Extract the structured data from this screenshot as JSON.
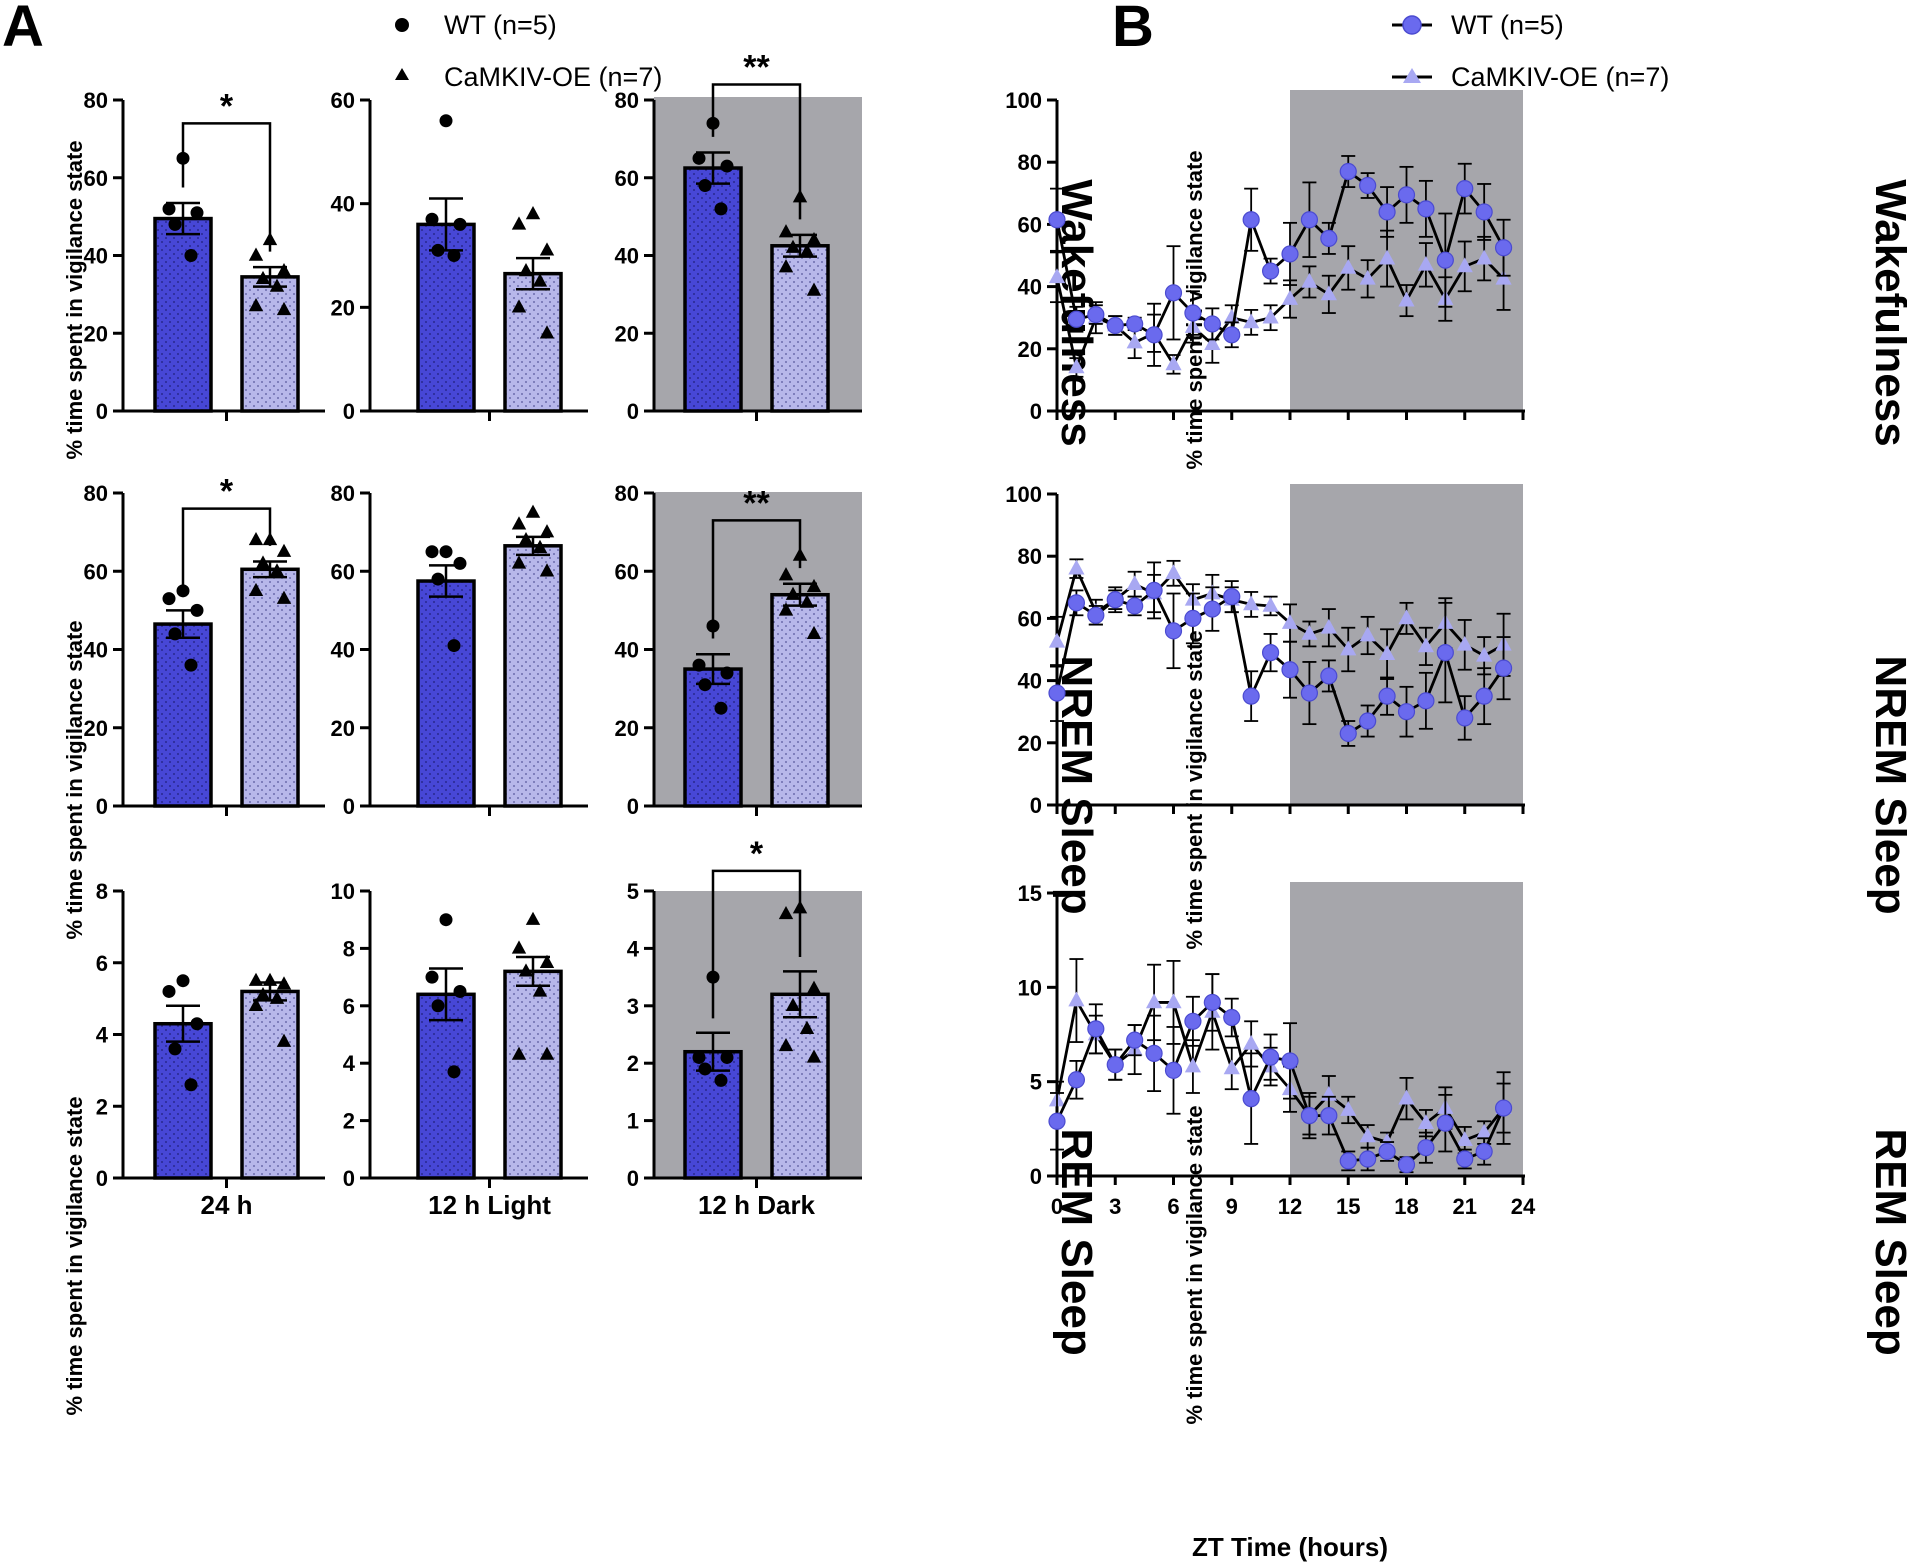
{
  "panel_labels": {
    "a": "A",
    "b": "B"
  },
  "legend_a": [
    {
      "symbol": "circle",
      "label": "WT (n=5)"
    },
    {
      "symbol": "triangle",
      "label": "CaMKIV-OE (n=7)"
    }
  ],
  "legend_b": [
    {
      "symbol": "circle",
      "label": "WT (n=5)"
    },
    {
      "symbol": "triangle",
      "label": "CaMKIV-OE (n=7)"
    }
  ],
  "y_axis_label": "% time spent in vigilance state",
  "row_labels": [
    "Wakefulness",
    "NREM Sleep",
    "REM Sleep"
  ],
  "colors": {
    "wt_bar": "#4747d6",
    "oe_bar": "#b7b7ea",
    "wt_line": "#6a6aee",
    "oe_line": "#a8a8f2",
    "dark_phase": "#a6a6ab"
  },
  "chart_data": [
    {
      "id": "A-wake-24h",
      "type": "bar",
      "row": "Wakefulness",
      "xlabel": "",
      "ylim": [
        0,
        80
      ],
      "ticks": [
        0,
        20,
        40,
        60,
        80
      ],
      "shaded": false,
      "categories": [
        "WT (n=5)",
        "CaMKIV-OE (n=7)"
      ],
      "values": [
        49.5,
        34.5
      ],
      "sem": [
        4.0,
        2.5
      ],
      "points": [
        [
          65,
          52,
          51,
          48,
          40
        ],
        [
          44,
          40,
          36,
          34,
          32,
          27,
          26
        ]
      ],
      "significance": {
        "label": "*",
        "y": 74
      }
    },
    {
      "id": "A-wake-light",
      "type": "bar",
      "row": "Wakefulness",
      "xlabel": "",
      "ylim": [
        0,
        60
      ],
      "ticks": [
        0,
        20,
        40,
        60
      ],
      "shaded": false,
      "categories": [
        "WT (n=5)",
        "CaMKIV-OE (n=7)"
      ],
      "values": [
        36,
        26.5
      ],
      "sem": [
        5.0,
        3.0
      ],
      "points": [
        [
          56,
          37,
          36,
          31,
          30
        ],
        [
          38,
          36,
          31,
          27,
          25,
          20,
          15
        ]
      ],
      "significance": null
    },
    {
      "id": "A-wake-dark",
      "type": "bar",
      "row": "Wakefulness",
      "xlabel": "",
      "ylim": [
        0,
        80
      ],
      "ticks": [
        0,
        20,
        40,
        60,
        80
      ],
      "shaded": true,
      "categories": [
        "WT (n=5)",
        "CaMKIV-OE (n=7)"
      ],
      "values": [
        62.5,
        42.5
      ],
      "sem": [
        4.0,
        2.8
      ],
      "points": [
        [
          74,
          65,
          63,
          58,
          52
        ],
        [
          55,
          46,
          44,
          42,
          41,
          37,
          31
        ]
      ],
      "significance": {
        "label": "**",
        "y": 84
      }
    },
    {
      "id": "A-nrem-24h",
      "type": "bar",
      "row": "NREM Sleep",
      "xlabel": "",
      "ylim": [
        0,
        80
      ],
      "ticks": [
        0,
        20,
        40,
        60,
        80
      ],
      "shaded": false,
      "categories": [
        "WT (n=5)",
        "CaMKIV-OE (n=7)"
      ],
      "values": [
        46.5,
        60.5
      ],
      "sem": [
        3.5,
        2.0
      ],
      "points": [
        [
          55,
          53,
          50,
          44,
          36
        ],
        [
          68,
          68,
          65,
          62,
          60,
          55,
          53
        ]
      ],
      "significance": {
        "label": "*",
        "y": 76
      }
    },
    {
      "id": "A-nrem-light",
      "type": "bar",
      "row": "NREM Sleep",
      "xlabel": "",
      "ylim": [
        0,
        80
      ],
      "ticks": [
        0,
        20,
        40,
        60,
        80
      ],
      "shaded": false,
      "categories": [
        "WT (n=5)",
        "CaMKIV-OE (n=7)"
      ],
      "values": [
        57.5,
        66.5
      ],
      "sem": [
        4.0,
        2.3
      ],
      "points": [
        [
          65,
          65,
          62,
          58,
          41
        ],
        [
          75,
          72,
          70,
          68,
          66,
          62,
          60
        ]
      ],
      "significance": null
    },
    {
      "id": "A-nrem-dark",
      "type": "bar",
      "row": "NREM Sleep",
      "xlabel": "",
      "ylim": [
        0,
        80
      ],
      "ticks": [
        0,
        20,
        40,
        60,
        80
      ],
      "shaded": true,
      "categories": [
        "WT (n=5)",
        "CaMKIV-OE (n=7)"
      ],
      "values": [
        35,
        54
      ],
      "sem": [
        3.8,
        2.8
      ],
      "points": [
        [
          46,
          36,
          34,
          31,
          25
        ],
        [
          64,
          59,
          56,
          54,
          52,
          50,
          44
        ]
      ],
      "significance": {
        "label": "**",
        "y": 73
      }
    },
    {
      "id": "A-rem-24h",
      "type": "bar",
      "row": "REM Sleep",
      "xlabel": "24 h",
      "ylim": [
        0,
        8
      ],
      "ticks": [
        0,
        2,
        4,
        6,
        8
      ],
      "shaded": false,
      "categories": [
        "WT (n=5)",
        "CaMKIV-OE (n=7)"
      ],
      "values": [
        4.3,
        5.2
      ],
      "sem": [
        0.5,
        0.25
      ],
      "points": [
        [
          5.5,
          5.2,
          4.3,
          3.6,
          2.6
        ],
        [
          5.5,
          5.5,
          5.4,
          5.1,
          5.0,
          4.8,
          3.8
        ]
      ],
      "significance": null
    },
    {
      "id": "A-rem-light",
      "type": "bar",
      "row": "REM Sleep",
      "xlabel": "12 h Light",
      "ylim": [
        0,
        10
      ],
      "ticks": [
        0,
        2,
        4,
        6,
        8,
        10
      ],
      "shaded": false,
      "categories": [
        "WT (n=5)",
        "CaMKIV-OE (n=7)"
      ],
      "values": [
        6.4,
        7.2
      ],
      "sem": [
        0.9,
        0.5
      ],
      "points": [
        [
          9.0,
          7.0,
          6.5,
          6.0,
          3.7
        ],
        [
          9.0,
          8.0,
          7.5,
          7.2,
          6.5,
          4.3,
          4.3
        ]
      ],
      "significance": null
    },
    {
      "id": "A-rem-dark",
      "type": "bar",
      "row": "REM Sleep",
      "xlabel": "12 h Dark",
      "ylim": [
        0,
        5
      ],
      "ticks": [
        0,
        1,
        2,
        3,
        4,
        5
      ],
      "shaded": true,
      "categories": [
        "WT (n=5)",
        "CaMKIV-OE (n=7)"
      ],
      "values": [
        2.2,
        3.2
      ],
      "sem": [
        0.33,
        0.4
      ],
      "points": [
        [
          3.5,
          2.1,
          2.1,
          1.9,
          1.7
        ],
        [
          4.7,
          4.6,
          3.3,
          3.0,
          2.6,
          2.3,
          2.1
        ]
      ],
      "significance": {
        "label": "*",
        "y": 5.35
      }
    },
    {
      "id": "B-wake",
      "type": "line",
      "row": "Wakefulness",
      "xlabel": "",
      "ylim": [
        0,
        100
      ],
      "ticks": [
        0,
        20,
        40,
        60,
        80,
        100
      ],
      "xlim": [
        0,
        24
      ],
      "xticks": [
        0,
        3,
        6,
        9,
        12,
        15,
        18,
        21,
        24
      ],
      "shaded_from": 12,
      "x": [
        0,
        1,
        2,
        3,
        4,
        5,
        6,
        7,
        8,
        9,
        10,
        11,
        12,
        13,
        14,
        15,
        16,
        17,
        18,
        19,
        20,
        21,
        22,
        23
      ],
      "series": [
        {
          "name": "WT (n=5)",
          "values": [
            61.5,
            29.5,
            31,
            27.5,
            28,
            24.5,
            38,
            31.5,
            28,
            24.5,
            61.5,
            45,
            50.5,
            61.5,
            55.5,
            77,
            72.5,
            64,
            69.5,
            65,
            48.5,
            71.5,
            64,
            52.5
          ],
          "err": [
            10,
            4,
            3,
            3,
            2,
            10,
            15,
            7,
            5,
            4,
            10,
            4,
            10,
            12,
            5,
            5,
            4,
            8,
            9,
            9,
            15,
            8,
            9,
            9
          ]
        },
        {
          "name": "CaMKIV-OE (n=7)",
          "values": [
            43,
            14,
            30,
            27.5,
            22,
            25,
            15,
            27,
            21.5,
            30,
            28.5,
            30,
            36,
            41.5,
            37.5,
            46,
            42.5,
            49,
            35.5,
            47,
            36,
            46.5,
            49,
            42.5
          ],
          "err": [
            8,
            3,
            5,
            3,
            5,
            6,
            3,
            5,
            6,
            4,
            4,
            4,
            6,
            5,
            6,
            7,
            6,
            9,
            5,
            7,
            7,
            8,
            7,
            10
          ]
        }
      ]
    },
    {
      "id": "B-nrem",
      "type": "line",
      "row": "NREM Sleep",
      "xlabel": "",
      "ylim": [
        0,
        100
      ],
      "ticks": [
        0,
        20,
        40,
        60,
        80,
        100
      ],
      "xlim": [
        0,
        24
      ],
      "xticks": [
        0,
        3,
        6,
        9,
        12,
        15,
        18,
        21,
        24
      ],
      "shaded_from": 12,
      "x": [
        0,
        1,
        2,
        3,
        4,
        5,
        6,
        7,
        8,
        9,
        10,
        11,
        12,
        13,
        14,
        15,
        16,
        17,
        18,
        19,
        20,
        21,
        22,
        23
      ],
      "series": [
        {
          "name": "WT (n=5)",
          "values": [
            36,
            65,
            61,
            66,
            64,
            69,
            56,
            60,
            63,
            67,
            35,
            49,
            43.5,
            36,
            41.5,
            23,
            27,
            35,
            30,
            33.5,
            49,
            28,
            35,
            44
          ],
          "err": [
            9,
            4,
            3,
            3,
            3,
            9,
            12,
            8,
            7,
            5,
            8,
            6,
            9,
            10,
            5,
            4,
            5,
            6,
            8,
            9,
            16,
            7,
            9,
            10
          ]
        },
        {
          "name": "CaMKIV-OE (n=7)",
          "values": [
            52.5,
            76,
            62,
            66,
            71,
            68,
            74.5,
            66,
            68,
            66,
            64.5,
            64,
            58.5,
            55,
            57,
            50,
            54.5,
            48.5,
            60,
            51,
            58.5,
            51.5,
            48,
            51.5
          ],
          "err": [
            8,
            3,
            4,
            4,
            4,
            6,
            4,
            5,
            6,
            4,
            4,
            3,
            6,
            4,
            6,
            7,
            6,
            8,
            5,
            6,
            8,
            8,
            6,
            10
          ]
        }
      ]
    },
    {
      "id": "B-rem",
      "type": "line",
      "row": "REM Sleep",
      "xlabel": "ZT Time (hours)",
      "ylim": [
        0,
        15
      ],
      "ticks": [
        0,
        5,
        10,
        15
      ],
      "xlim": [
        0,
        24
      ],
      "xticks": [
        0,
        3,
        6,
        9,
        12,
        15,
        18,
        21,
        24
      ],
      "shaded_from": 12,
      "x": [
        0,
        1,
        2,
        3,
        4,
        5,
        6,
        7,
        8,
        9,
        10,
        11,
        12,
        13,
        14,
        15,
        16,
        17,
        18,
        19,
        20,
        21,
        22,
        23
      ],
      "series": [
        {
          "name": "WT (n=5)",
          "values": [
            2.9,
            5.1,
            7.8,
            5.9,
            7.2,
            6.5,
            5.6,
            8.2,
            9.2,
            8.4,
            4.1,
            6.3,
            6.1,
            3.2,
            3.2,
            0.8,
            0.9,
            1.3,
            0.6,
            1.5,
            2.8,
            0.9,
            1.3,
            3.6
          ],
          "err": [
            1.5,
            1.0,
            1.3,
            0.8,
            0.8,
            2.0,
            2.3,
            1.3,
            1.5,
            1.0,
            2.4,
            1.2,
            2.0,
            1.2,
            1.0,
            0.5,
            0.6,
            0.5,
            0.4,
            0.8,
            1.5,
            0.5,
            0.7,
            1.9
          ]
        },
        {
          "name": "CaMKIV-OE (n=7)",
          "values": [
            4.0,
            9.3,
            7.5,
            5.9,
            6.7,
            9.2,
            9.2,
            5.8,
            8.7,
            5.7,
            7.0,
            5.8,
            4.6,
            3.2,
            4.3,
            3.5,
            2.1,
            1.8,
            4.1,
            2.8,
            3.6,
            1.9,
            2.3,
            3.6
          ],
          "err": [
            1.0,
            2.2,
            1.0,
            0.8,
            1.3,
            2.0,
            2.2,
            1.4,
            2.0,
            1.1,
            1.2,
            1.0,
            1.2,
            1.0,
            1.0,
            0.7,
            0.6,
            0.5,
            1.1,
            0.7,
            1.1,
            0.7,
            0.6,
            1.3
          ]
        }
      ]
    }
  ]
}
